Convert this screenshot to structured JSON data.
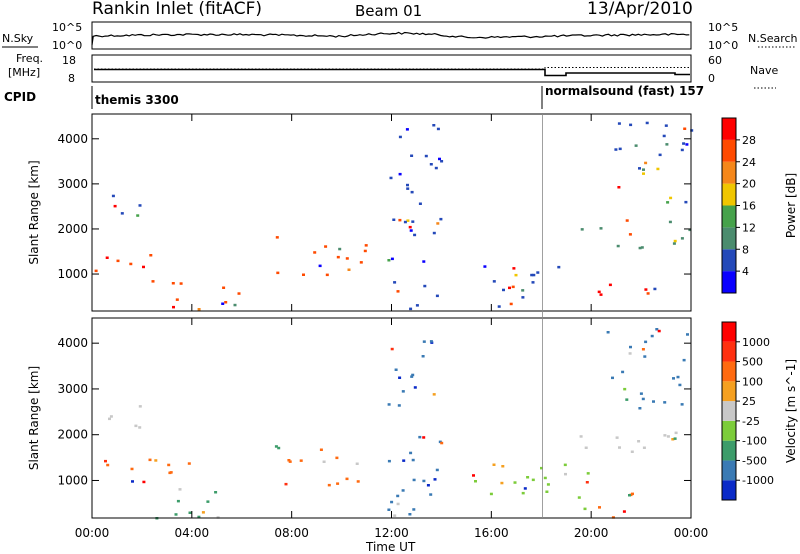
{
  "header": {
    "station": "Rankin Inlet (fitACF)",
    "beam": "Beam 01",
    "date": "13/Apr/2010"
  },
  "nsky_panel": {
    "left_label": "N.Sky",
    "right_label": "N.Search",
    "left_ticks": [
      "10^5",
      "10^0"
    ],
    "right_ticks": [
      "10^5",
      "10^0"
    ]
  },
  "freq_panel": {
    "left_label_line1": "Freq.",
    "left_label_line2": "[MHz]",
    "right_label": "Nave",
    "left_ticks": [
      "18",
      "8"
    ],
    "right_ticks": [
      "60",
      "0"
    ]
  },
  "cpid_panel": {
    "label": "CPID",
    "segments": [
      {
        "text": "themis 3300",
        "start_hour": 0
      },
      {
        "text": "normalsound (fast) 157",
        "start_hour": 18.05
      }
    ]
  },
  "time_axis": {
    "label": "Time UT",
    "ticks": [
      "00:00",
      "04:00",
      "08:00",
      "12:00",
      "16:00",
      "20:00",
      "00:00"
    ]
  },
  "chart_data": [
    {
      "type": "heatmap",
      "name": "power-panel",
      "ylabel": "Slant Range [km]",
      "yticks": [
        1000,
        2000,
        3000,
        4000
      ],
      "ylim": [
        180,
        4550
      ],
      "xlim_hours": [
        0,
        24
      ],
      "colorbar": {
        "title": "Power [dB]",
        "labels": [
          "28",
          "24",
          "20",
          "16",
          "12",
          "8",
          "4"
        ],
        "colors": [
          "#0a00ff",
          "#2449b9",
          "#4b8c6e",
          "#46a24b",
          "#f0c600",
          "#f5871a",
          "#ff4a00",
          "#ff0000"
        ]
      },
      "regions": [
        {
          "h0": 0.0,
          "h1": 2.0,
          "r0": 2150,
          "r1": 2800,
          "dominant": "#2449b9"
        },
        {
          "h0": 0.0,
          "h1": 3.2,
          "r0": 850,
          "r1": 1450,
          "dominant": "#ff4a00"
        },
        {
          "h0": 2.5,
          "h1": 6.0,
          "r0": 200,
          "r1": 950,
          "dominant": "#ff4a00"
        },
        {
          "h0": 7.2,
          "h1": 11.0,
          "r0": 900,
          "r1": 1850,
          "dominant": "#ff4a00"
        },
        {
          "h0": 11.8,
          "h1": 14.0,
          "r0": 200,
          "r1": 4400,
          "dominant": "#2449b9"
        },
        {
          "h0": 15.5,
          "h1": 20.0,
          "r0": 300,
          "r1": 1250,
          "dominant": "#2449b9"
        },
        {
          "h0": 19.5,
          "h1": 24.0,
          "r0": 1600,
          "r1": 2300,
          "dominant": "#4b8c6e"
        },
        {
          "h0": 20.0,
          "h1": 22.5,
          "r0": 200,
          "r1": 850,
          "dominant": "#ff0000"
        },
        {
          "h0": 20.5,
          "h1": 24.0,
          "r0": 2600,
          "r1": 4400,
          "dominant": "#2449b9"
        }
      ]
    },
    {
      "type": "heatmap",
      "name": "velocity-panel",
      "ylabel": "Slant Range [km]",
      "yticks": [
        1000,
        2000,
        3000,
        4000
      ],
      "ylim": [
        180,
        4550
      ],
      "xlim_hours": [
        0,
        24
      ],
      "colorbar": {
        "title": "Velocity [m s^-1]",
        "labels": [
          "1000",
          "500",
          "100",
          "25",
          "-25",
          "-100",
          "-500",
          "-1000"
        ],
        "colors": [
          "#0a2ac8",
          "#3a7ab4",
          "#3c9c6a",
          "#7ccc3a",
          "#c8c8c8",
          "#f5a020",
          "#ff6a10",
          "#ff3010",
          "#ff0000"
        ]
      },
      "regions": [
        {
          "h0": 0.0,
          "h1": 2.0,
          "r0": 2150,
          "r1": 2800,
          "dominant": "#c8c8c8"
        },
        {
          "h0": 0.0,
          "h1": 4.2,
          "r0": 850,
          "r1": 1500,
          "dominant": "#ff6a10"
        },
        {
          "h0": 2.5,
          "h1": 6.0,
          "r0": 200,
          "r1": 950,
          "dominant": "#3c9c6a"
        },
        {
          "h0": 7.2,
          "h1": 11.0,
          "r0": 900,
          "r1": 1850,
          "dominant": "#ff6a10"
        },
        {
          "h0": 11.8,
          "h1": 14.0,
          "r0": 200,
          "r1": 4400,
          "dominant": "#3a7ab4"
        },
        {
          "h0": 15.0,
          "h1": 20.0,
          "r0": 300,
          "r1": 1400,
          "dominant": "#7ccc3a"
        },
        {
          "h0": 19.5,
          "h1": 24.0,
          "r0": 1600,
          "r1": 2300,
          "dominant": "#c8c8c8"
        },
        {
          "h0": 20.0,
          "h1": 22.5,
          "r0": 200,
          "r1": 850,
          "dominant": "#ff6a10"
        },
        {
          "h0": 20.5,
          "h1": 24.0,
          "r0": 2600,
          "r1": 4400,
          "dominant": "#3a7ab4"
        }
      ]
    }
  ]
}
